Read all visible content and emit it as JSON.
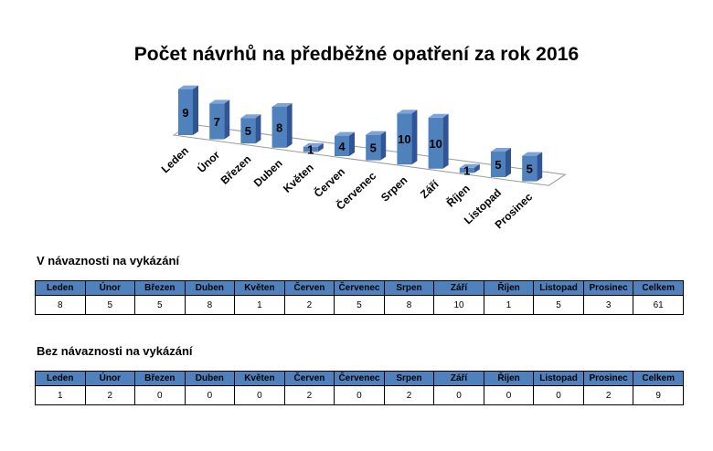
{
  "chart_data": {
    "type": "bar",
    "title": "Počet návrhů na předběžné opatření za rok 2016",
    "categories": [
      "Leden",
      "Únor",
      "Březen",
      "Duben",
      "Květen",
      "Červen",
      "Červenec",
      "Srpen",
      "Září",
      "Říjen",
      "Listopad",
      "Prosinec"
    ],
    "values": [
      9,
      7,
      5,
      8,
      1,
      4,
      5,
      10,
      10,
      1,
      5,
      5
    ],
    "xlabel": "",
    "ylabel": "",
    "grid": false,
    "colors": {
      "bar_front": "#4f81bd",
      "bar_side": "#2f5597",
      "bar_top": "#7fa3d6"
    }
  },
  "tables": [
    {
      "title": "V návaznosti na vykázání",
      "headers": [
        "Leden",
        "Únor",
        "Březen",
        "Duben",
        "Květen",
        "Červen",
        "Červenec",
        "Srpen",
        "Září",
        "Říjen",
        "Listopad",
        "Prosinec",
        "Celkem"
      ],
      "values": [
        "8",
        "5",
        "5",
        "8",
        "1",
        "2",
        "5",
        "8",
        "10",
        "1",
        "5",
        "3",
        "61"
      ]
    },
    {
      "title": "Bez návaznosti na vykázání",
      "headers": [
        "Leden",
        "Únor",
        "Březen",
        "Duben",
        "Květen",
        "Červen",
        "Červenec",
        "Srpen",
        "Září",
        "Říjen",
        "Listopad",
        "Prosinec",
        "Celkem"
      ],
      "values": [
        "1",
        "2",
        "0",
        "0",
        "0",
        "2",
        "0",
        "2",
        "0",
        "0",
        "0",
        "2",
        "9"
      ]
    }
  ],
  "colors": {
    "table_header": "#4f81bd"
  }
}
